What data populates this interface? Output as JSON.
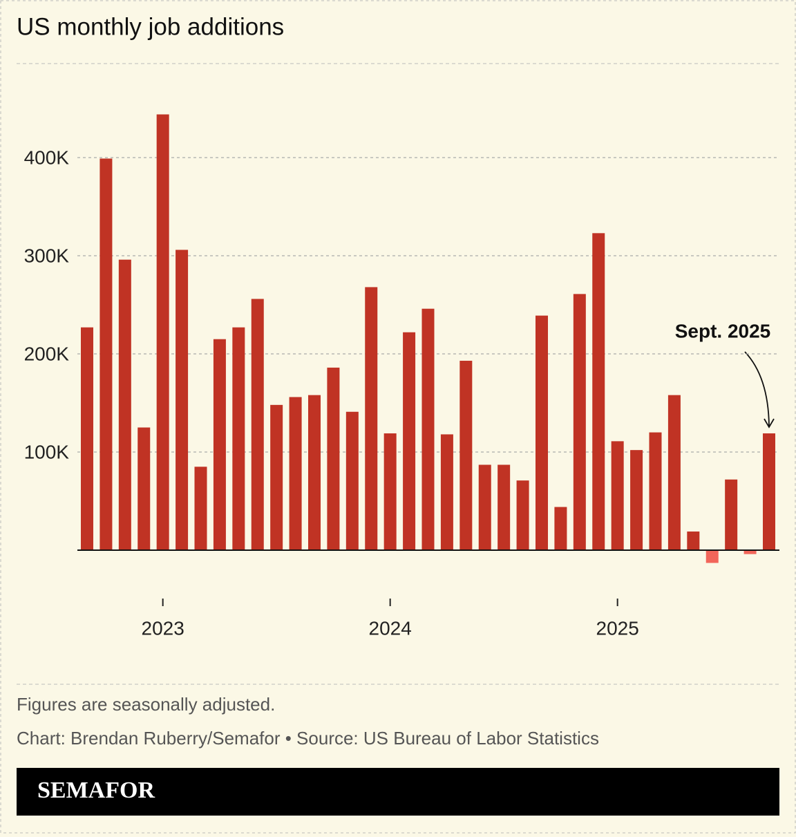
{
  "chart_data": {
    "type": "bar",
    "title": "US monthly job additions",
    "categories": [
      null,
      null,
      null,
      null,
      "2023",
      null,
      null,
      null,
      null,
      null,
      null,
      null,
      null,
      null,
      null,
      null,
      "2024",
      null,
      null,
      null,
      null,
      null,
      null,
      null,
      null,
      null,
      null,
      null,
      "2025",
      null,
      null,
      null,
      null,
      null,
      null,
      null,
      null
    ],
    "values": [
      227000,
      399000,
      296000,
      125000,
      444000,
      306000,
      85000,
      215000,
      227000,
      256000,
      148000,
      156000,
      158000,
      186000,
      141000,
      268000,
      119000,
      222000,
      246000,
      118000,
      193000,
      87000,
      87000,
      71000,
      239000,
      44000,
      261000,
      323000,
      111000,
      102000,
      120000,
      158000,
      19000,
      -13000,
      72000,
      -4000,
      119000
    ],
    "color": "#c03324",
    "negative_color": "#f2665a",
    "ylim": [
      -25000,
      500000
    ],
    "yticks": [
      {
        "value": 100000,
        "label": "100K"
      },
      {
        "value": 200000,
        "label": "200K"
      },
      {
        "value": 300000,
        "label": "300K"
      },
      {
        "value": 400000,
        "label": "400K"
      }
    ],
    "grid": true,
    "annotation": "Sept. 2025",
    "note": "Figures are seasonally adjusted.",
    "source": "Chart: Brendan Ruberry/Semafor • Source: US Bureau of Labor Statistics",
    "brand": "SEMAFOR"
  }
}
